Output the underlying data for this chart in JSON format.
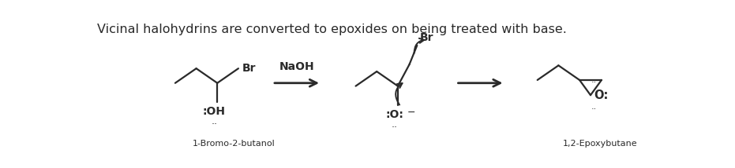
{
  "title_text": "Vicinal halohydrins are converted to epoxides on being treated with base.",
  "title_fontsize": 11.5,
  "bg_color": "#ffffff",
  "text_color": "#2a2a2a",
  "label1": "1-Bromo-2-butanol",
  "label2": "1,2-Epoxybutane",
  "naoh_label": "NaOH"
}
